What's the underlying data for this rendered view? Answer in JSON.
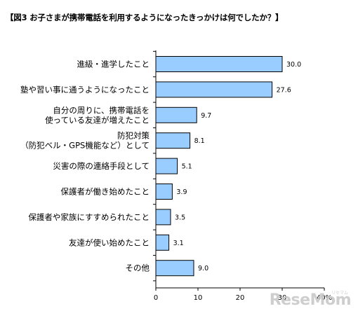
{
  "title": "【図3 お子さまが携帯電話を利用するようになったきっかけは何でしたか？】",
  "watermark": "ReseMom",
  "watermark_sub": "リセマム",
  "colors": {
    "bar_fill": "#99ccff",
    "bar_stroke": "#000000"
  },
  "chart_data": {
    "type": "bar",
    "orientation": "horizontal",
    "title": "【図3 お子さまが携帯電話を利用するようになったきっかけは何でしたか？】",
    "categories": [
      [
        "進級・進学したこと"
      ],
      [
        "塾や習い事に通うようになったこと"
      ],
      [
        "自分の周りに、携帯電話を",
        "使っている友達が増えたこと"
      ],
      [
        "防犯対策",
        "（防犯ベル・GPS機能など）として"
      ],
      [
        "災害の際の連絡手段として"
      ],
      [
        "保護者が働き始めたこと"
      ],
      [
        "保護者や家族にすすめられたこと"
      ],
      [
        "友達が使い始めたこと"
      ],
      [
        "その他"
      ]
    ],
    "values": [
      30.0,
      27.6,
      9.7,
      8.1,
      5.1,
      3.9,
      3.5,
      3.1,
      9.0
    ],
    "value_labels": [
      "30.0",
      "27.6",
      "9.7",
      "8.1",
      "5.1",
      "3.9",
      "3.5",
      "3.1",
      "9.0"
    ],
    "xlim": [
      0,
      40
    ],
    "xticks": [
      0,
      10,
      20,
      30,
      40
    ],
    "xtick_labels": [
      "0",
      "10",
      "20",
      "30",
      "40%"
    ],
    "grid": false,
    "legend": "none"
  }
}
